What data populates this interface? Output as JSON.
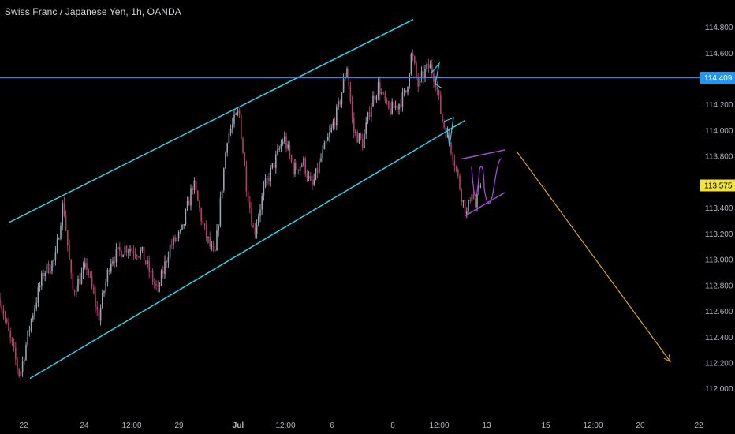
{
  "title": "Swiss Franc / Japanese Yen, 1h, OANDA",
  "colors": {
    "background": "#000000",
    "text": "#b2b5be",
    "candle": "#9aa3b1",
    "candle_down": "#b0406a",
    "channel": "#33d0e8",
    "h_level": "#1e90ff",
    "pattern": "#a64bd6",
    "projection": "#d9a326",
    "current_tag_bg": "#f1e33b",
    "level_tag_bg": "#2196f3"
  },
  "chart_data": {
    "type": "candlestick",
    "y_ticks": [
      "114.800",
      "114.600",
      "114.409",
      "114.200",
      "114.000",
      "113.800",
      "113.575",
      "113.400",
      "113.200",
      "113.000",
      "112.800",
      "112.600",
      "112.400",
      "112.200",
      "112.000"
    ],
    "x_ticks": [
      "22",
      "24",
      "12:00",
      "29",
      "Jul",
      "12:00",
      "6",
      "8",
      "12:00",
      "13",
      "15",
      "12:00",
      "20",
      "22"
    ],
    "ylim": [
      111.98,
      114.84
    ],
    "price_tags": {
      "level": "114.409",
      "current": "113.575"
    },
    "close_anchors": [
      [
        0,
        112.7
      ],
      [
        10,
        112.45
      ],
      [
        25,
        112.1
      ],
      [
        40,
        112.55
      ],
      [
        55,
        112.9
      ],
      [
        70,
        113.0
      ],
      [
        80,
        113.45
      ],
      [
        92,
        112.75
      ],
      [
        110,
        112.95
      ],
      [
        125,
        112.55
      ],
      [
        140,
        113.0
      ],
      [
        160,
        113.1
      ],
      [
        180,
        113.05
      ],
      [
        200,
        112.75
      ],
      [
        215,
        113.1
      ],
      [
        230,
        113.2
      ],
      [
        245,
        113.6
      ],
      [
        258,
        113.25
      ],
      [
        272,
        113.0
      ],
      [
        288,
        113.95
      ],
      [
        303,
        114.15
      ],
      [
        312,
        113.6
      ],
      [
        322,
        113.2
      ],
      [
        335,
        113.55
      ],
      [
        348,
        113.75
      ],
      [
        360,
        113.95
      ],
      [
        372,
        113.7
      ],
      [
        385,
        113.75
      ],
      [
        395,
        113.55
      ],
      [
        408,
        113.8
      ],
      [
        420,
        114.0
      ],
      [
        430,
        114.2
      ],
      [
        440,
        114.5
      ],
      [
        448,
        114.0
      ],
      [
        460,
        113.9
      ],
      [
        470,
        114.2
      ],
      [
        480,
        114.35
      ],
      [
        492,
        114.15
      ],
      [
        505,
        114.2
      ],
      [
        515,
        114.3
      ],
      [
        522,
        114.6
      ],
      [
        530,
        114.35
      ],
      [
        538,
        114.45
      ],
      [
        545,
        114.5
      ],
      [
        552,
        114.4
      ],
      [
        560,
        114.1
      ],
      [
        568,
        113.95
      ],
      [
        575,
        113.8
      ],
      [
        580,
        113.65
      ],
      [
        587,
        113.45
      ],
      [
        592,
        113.35
      ],
      [
        598,
        113.55
      ],
      [
        603,
        113.4
      ],
      [
        610,
        113.6
      ]
    ],
    "lines": [
      {
        "name": "channel_upper",
        "x1": 12,
        "y1": 113.29,
        "x2": 524,
        "y2": 114.86
      },
      {
        "name": "channel_lower",
        "x1": 38,
        "y1": 112.08,
        "x2": 590,
        "y2": 114.08
      },
      {
        "name": "resistance",
        "y": 114.409
      },
      {
        "name": "pattern_upper",
        "x1": 585,
        "y1": 113.78,
        "x2": 640,
        "y2": 113.85
      },
      {
        "name": "pattern_lower",
        "x1": 590,
        "y1": 113.34,
        "x2": 640,
        "y2": 113.52
      },
      {
        "name": "projection",
        "x1": 655,
        "y1": 113.84,
        "x2": 850,
        "y2": 112.21
      }
    ]
  }
}
